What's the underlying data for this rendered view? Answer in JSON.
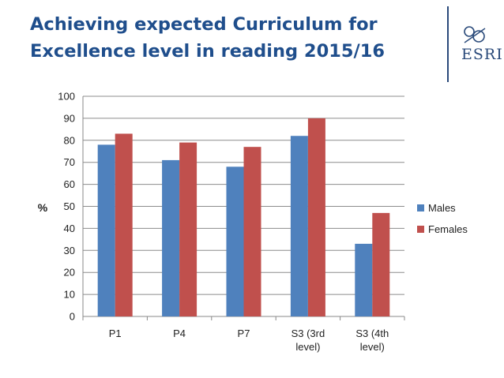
{
  "header": {
    "title_line1": "Achieving expected Curriculum for",
    "title_line2": "Excellence level in reading 2015/16"
  },
  "logo": {
    "text": "ESRI",
    "icon": "esri-logo-icon",
    "color": "#2a4a7a"
  },
  "chart_data": {
    "type": "bar",
    "title": "Achieving expected Curriculum for Excellence level in reading 2015/16",
    "ylabel": "%",
    "ylim": [
      0,
      100
    ],
    "yticks": [
      0,
      10,
      20,
      30,
      40,
      50,
      60,
      70,
      80,
      90,
      100
    ],
    "grid": true,
    "legend_position": "right",
    "categories": [
      [
        "P1"
      ],
      [
        "P4"
      ],
      [
        "P7"
      ],
      [
        "S3 (3rd",
        "level)"
      ],
      [
        "S3 (4th",
        "level)"
      ]
    ],
    "series": [
      {
        "name": "Males",
        "color": "#4f81bd",
        "values": [
          78,
          71,
          68,
          82,
          33
        ]
      },
      {
        "name": "Females",
        "color": "#c0504d",
        "values": [
          83,
          79,
          77,
          90,
          47
        ]
      }
    ]
  }
}
